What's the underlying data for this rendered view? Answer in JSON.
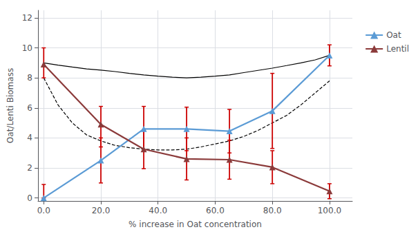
{
  "chart_data": {
    "type": "line",
    "xlabel": "% increase in Oat concentration",
    "ylabel": "Oat/Lenti Biomass",
    "xlim": [
      -2,
      108
    ],
    "ylim": [
      -0.2,
      12.5
    ],
    "xticks": [
      {
        "value": 0.0,
        "label": "0.0"
      },
      {
        "value": 20.0,
        "label": "20.0"
      },
      {
        "value": 40.0,
        "label": "40.0"
      },
      {
        "value": 60.0,
        "label": "60.0"
      },
      {
        "value": 80.0,
        "label": "80.0"
      },
      {
        "value": 100.0,
        "label": "100.0"
      }
    ],
    "yticks": [
      0,
      2,
      4,
      6,
      8,
      10,
      12
    ],
    "grid": true,
    "legend": "right",
    "error_color": "#cc0000",
    "series": [
      {
        "color": "#000000",
        "line_style": "solid",
        "x": [
          0.0,
          5.0,
          10.0,
          15.0,
          20.0,
          25.0,
          30.0,
          35.0,
          40.0,
          45.0,
          50.0,
          55.0,
          60.0,
          65.0,
          70.0,
          75.0,
          80.0,
          85.0,
          90.0,
          95.0,
          100.0
        ],
        "values": [
          9.0,
          8.85,
          8.72,
          8.6,
          8.52,
          8.42,
          8.3,
          8.2,
          8.12,
          8.05,
          8.0,
          8.05,
          8.12,
          8.2,
          8.35,
          8.5,
          8.65,
          8.82,
          9.0,
          9.2,
          9.5
        ]
      },
      {
        "color": "#000000",
        "line_style": "dashed",
        "x": [
          0.0,
          5.0,
          10.0,
          15.0,
          20.0,
          25.0,
          30.0,
          35.0,
          40.0,
          45.0,
          50.0,
          55.0,
          60.0,
          65.0,
          70.0,
          75.0,
          80.0,
          85.0,
          90.0,
          95.0,
          100.0
        ],
        "values": [
          8.0,
          6.2,
          5.0,
          4.2,
          3.8,
          3.5,
          3.35,
          3.25,
          3.2,
          3.2,
          3.25,
          3.4,
          3.6,
          3.8,
          4.1,
          4.5,
          5.0,
          5.5,
          6.2,
          7.0,
          7.8
        ]
      },
      {
        "name": "Oat",
        "color": "#5b9bd5",
        "marker": "triangle",
        "line_style": "solid",
        "x": [
          0.0,
          20.0,
          35.0,
          50.0,
          65.0,
          80.0,
          100.0
        ],
        "values": [
          0.0,
          2.5,
          4.6,
          4.6,
          4.45,
          5.8,
          9.5
        ],
        "yerr_lo": [
          0.0,
          1.5,
          1.5,
          1.45,
          1.45,
          2.5,
          0.7
        ],
        "yerr_hi": [
          0.9,
          1.5,
          1.5,
          1.45,
          1.45,
          2.5,
          0.7
        ]
      },
      {
        "name": "Lentil",
        "color": "#8b3a3a",
        "marker": "triangle",
        "line_style": "solid",
        "x": [
          0.0,
          20.0,
          35.0,
          50.0,
          65.0,
          80.0,
          100.0
        ],
        "values": [
          8.9,
          4.9,
          3.25,
          2.6,
          2.55,
          2.05,
          0.45
        ],
        "yerr_lo": [
          0.9,
          1.5,
          1.3,
          1.4,
          1.3,
          1.1,
          0.5
        ],
        "yerr_hi": [
          1.1,
          1.2,
          1.3,
          1.4,
          1.3,
          1.1,
          0.5
        ]
      }
    ]
  }
}
